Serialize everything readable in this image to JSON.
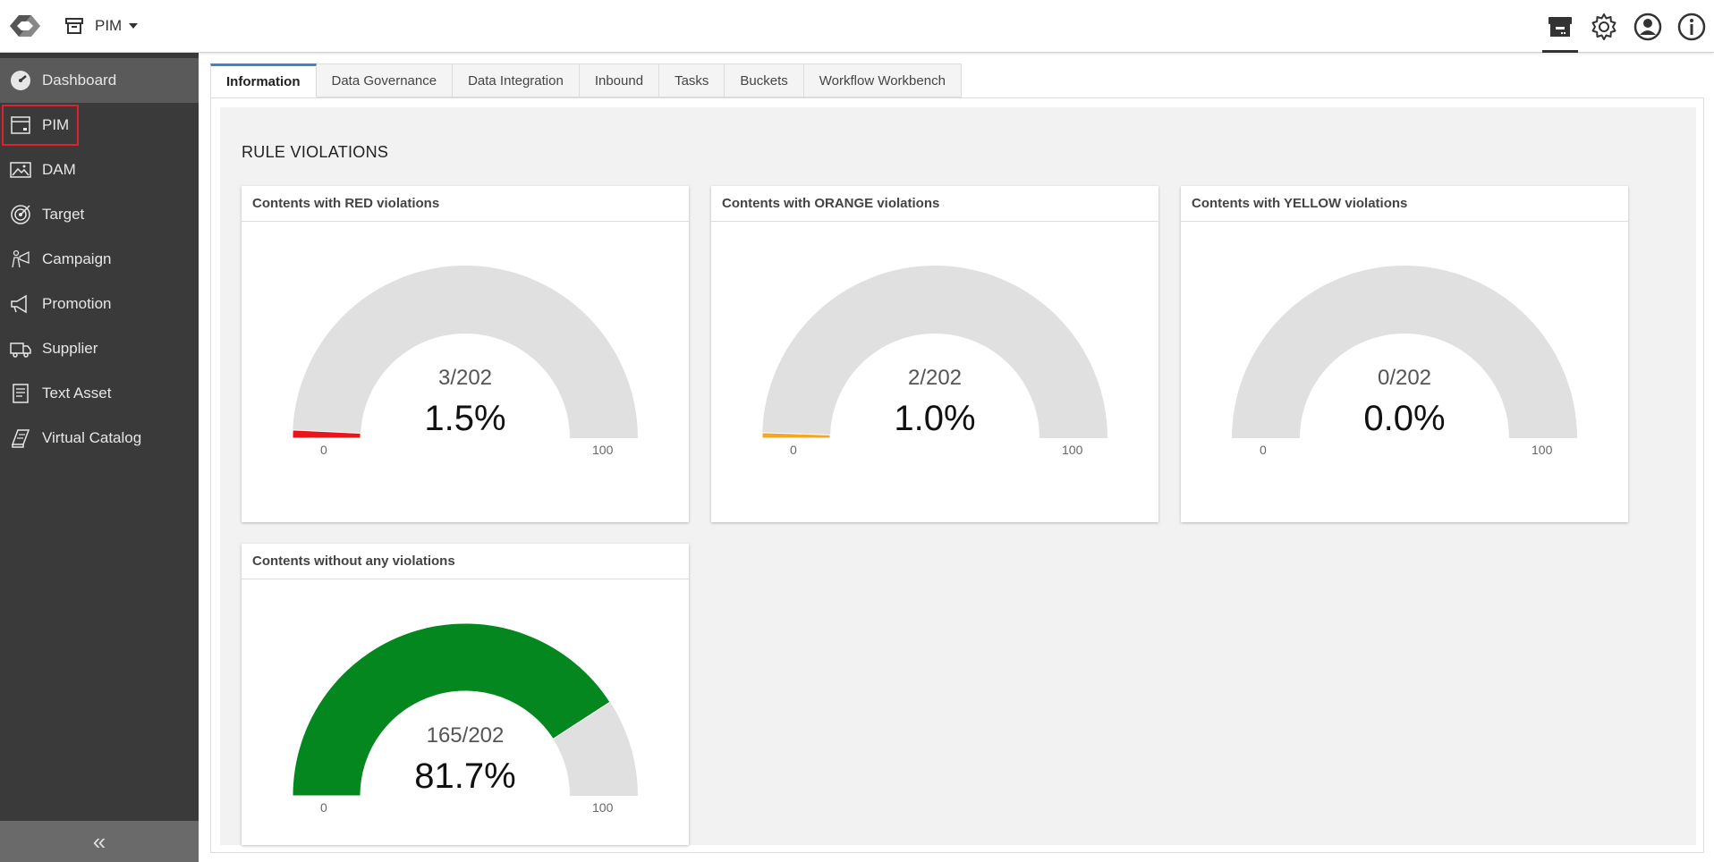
{
  "header": {
    "module_label": "PIM",
    "icons": [
      "logo-icon",
      "archive-box-icon",
      "settings-gear-icon",
      "user-profile-icon",
      "info-icon"
    ]
  },
  "sidebar": {
    "items": [
      {
        "label": "Dashboard",
        "icon": "dashboard-gauge-icon"
      },
      {
        "label": "PIM",
        "icon": "archive-box-icon"
      },
      {
        "label": "DAM",
        "icon": "image-icon"
      },
      {
        "label": "Target",
        "icon": "target-icon"
      },
      {
        "label": "Campaign",
        "icon": "campaign-icon"
      },
      {
        "label": "Promotion",
        "icon": "megaphone-icon"
      },
      {
        "label": "Supplier",
        "icon": "truck-icon"
      },
      {
        "label": "Text Asset",
        "icon": "document-icon"
      },
      {
        "label": "Virtual Catalog",
        "icon": "catalog-icon"
      }
    ],
    "collapse_label": "«"
  },
  "tabs": [
    "Information",
    "Data Governance",
    "Data Integration",
    "Inbound",
    "Tasks",
    "Buckets",
    "Workflow Workbench"
  ],
  "section_title": "RULE VIOLATIONS",
  "colors": {
    "red": "#e8161b",
    "orange": "#f5a623",
    "yellow": "#f2d600",
    "green": "#03871e",
    "track": "#e0e0e0",
    "active_tab": "#3f7fd6"
  },
  "gauges": [
    {
      "title": "Contents with RED violations",
      "count": "3/202",
      "percent_text": "1.5%",
      "value": 1.5,
      "min": "0",
      "max": "100",
      "color": "#e8161b"
    },
    {
      "title": "Contents with ORANGE violations",
      "count": "2/202",
      "percent_text": "1.0%",
      "value": 1.0,
      "min": "0",
      "max": "100",
      "color": "#f5a623"
    },
    {
      "title": "Contents with YELLOW violations",
      "count": "0/202",
      "percent_text": "0.0%",
      "value": 0.0,
      "min": "0",
      "max": "100",
      "color": "#f2d600"
    },
    {
      "title": "Contents without any violations",
      "count": "165/202",
      "percent_text": "81.7%",
      "value": 81.7,
      "min": "0",
      "max": "100",
      "color": "#03871e"
    }
  ]
}
